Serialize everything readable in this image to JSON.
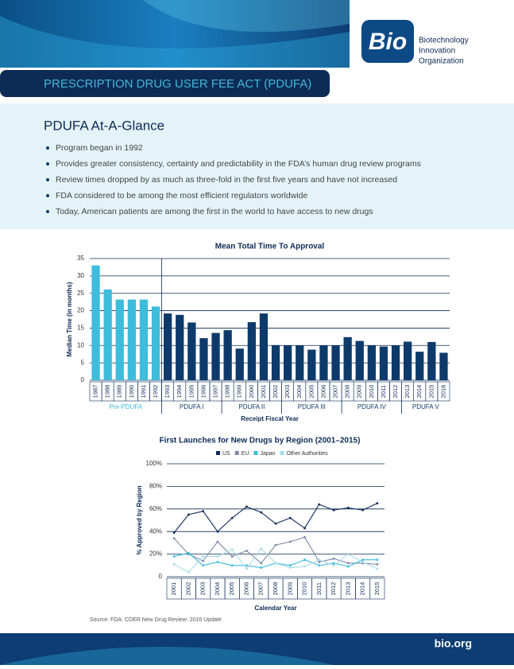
{
  "logo": {
    "mark": "Bio",
    "lines": [
      "Biotechnology",
      "Innovation",
      "Organization"
    ]
  },
  "header": {
    "title": "PRESCRIPTION DRUG USER FEE ACT (PDUFA)"
  },
  "glance": {
    "heading": "PDUFA At-A-Glance",
    "bullets": [
      "Program began in 1992",
      "Provides greater consistency, certainty and predictability in the FDA’s human drug review programs",
      "Review times dropped by as much as three-fold in the first five years and have not increased",
      "FDA considered to be among the most efficient regulators worldwide",
      "Today, American patients are among the first in the world to have access to new drugs"
    ]
  },
  "chart_data": [
    {
      "type": "bar",
      "title": "Mean Total Time To Approval",
      "y_label": "Median Time (in months)",
      "x_label": "Receipt Fiscal Year",
      "categories": [
        "1987",
        "1988",
        "1989",
        "1990",
        "1991",
        "1992",
        "1993",
        "1994",
        "1995",
        "1996",
        "1997",
        "1998",
        "1999",
        "2000",
        "2001",
        "2002",
        "2003",
        "2004",
        "2005",
        "2006",
        "2007",
        "2008",
        "2009",
        "2010",
        "2011",
        "2012",
        "2013",
        "2014",
        "2015",
        "2016"
      ],
      "values": [
        33,
        26.1,
        23.2,
        23.2,
        23.2,
        21.2,
        19.2,
        18.8,
        16.6,
        12.1,
        13.6,
        14.4,
        9.1,
        16.7,
        19.2,
        10.1,
        10,
        10,
        8.8,
        10,
        10,
        12.4,
        11.3,
        10,
        9.7,
        10,
        11.1,
        8.2,
        11,
        7.9
      ],
      "groups": [
        {
          "label": "Pre-PDUFA",
          "count": 6,
          "color": "#3dbcdb"
        },
        {
          "label": "PDUFA I",
          "count": 5,
          "color": "#0d3a6b"
        },
        {
          "label": "PDUFA II",
          "count": 5,
          "color": "#0d3a6b"
        },
        {
          "label": "PDUFA III",
          "count": 5,
          "color": "#0d3a6b"
        },
        {
          "label": "PDUFA IV",
          "count": 5,
          "color": "#0d3a6b"
        },
        {
          "label": "PDUFA V",
          "count": 4,
          "color": "#0d3a6b"
        }
      ],
      "ylim": [
        0,
        35
      ],
      "yticks": [
        0,
        5,
        10,
        15,
        20,
        25,
        30,
        35
      ],
      "grid": true
    },
    {
      "type": "line",
      "title": "First Launches for New Drugs by Region (2001–2015)",
      "y_label": "% Approved by Region",
      "x_label": "Calendar Year",
      "categories": [
        "2001",
        "2002",
        "2003",
        "2004",
        "2005",
        "2006",
        "2007",
        "2008",
        "2009",
        "2010",
        "2011",
        "2012",
        "2013",
        "2014",
        "2015"
      ],
      "series": [
        {
          "name": "US",
          "color": "#0d2b55",
          "values": [
            39,
            55,
            58,
            40,
            52,
            62,
            57,
            47,
            52,
            43,
            64,
            59,
            61,
            59,
            65
          ]
        },
        {
          "name": "EU",
          "color": "#7a8aa3",
          "values": [
            34,
            20,
            14,
            31,
            18,
            23,
            12,
            28,
            31,
            35,
            13,
            16,
            12,
            12,
            11
          ]
        },
        {
          "name": "Japan",
          "color": "#3dbcdb",
          "values": [
            18,
            21,
            10,
            13,
            10,
            10,
            8,
            12,
            10,
            15,
            10,
            12,
            9,
            15,
            15
          ]
        },
        {
          "name": "Other Authorities",
          "color": "#a9dbe8",
          "values": [
            11,
            4,
            18,
            18,
            24,
            7,
            25,
            12,
            8,
            9,
            15,
            10,
            20,
            13,
            7
          ]
        }
      ],
      "ylim": [
        0,
        100
      ],
      "yticks": [
        0,
        {
          "value": 20,
          "label": "20%"
        },
        {
          "value": 40,
          "label": "40%"
        },
        {
          "value": 60,
          "label": "60%"
        },
        {
          "value": 80,
          "label": "80%"
        },
        {
          "value": 100,
          "label": "100%"
        }
      ],
      "grid": true
    }
  ],
  "source": "Source: FDA: CDER New Drug Review: 2016 Update",
  "footer": "bio.org"
}
